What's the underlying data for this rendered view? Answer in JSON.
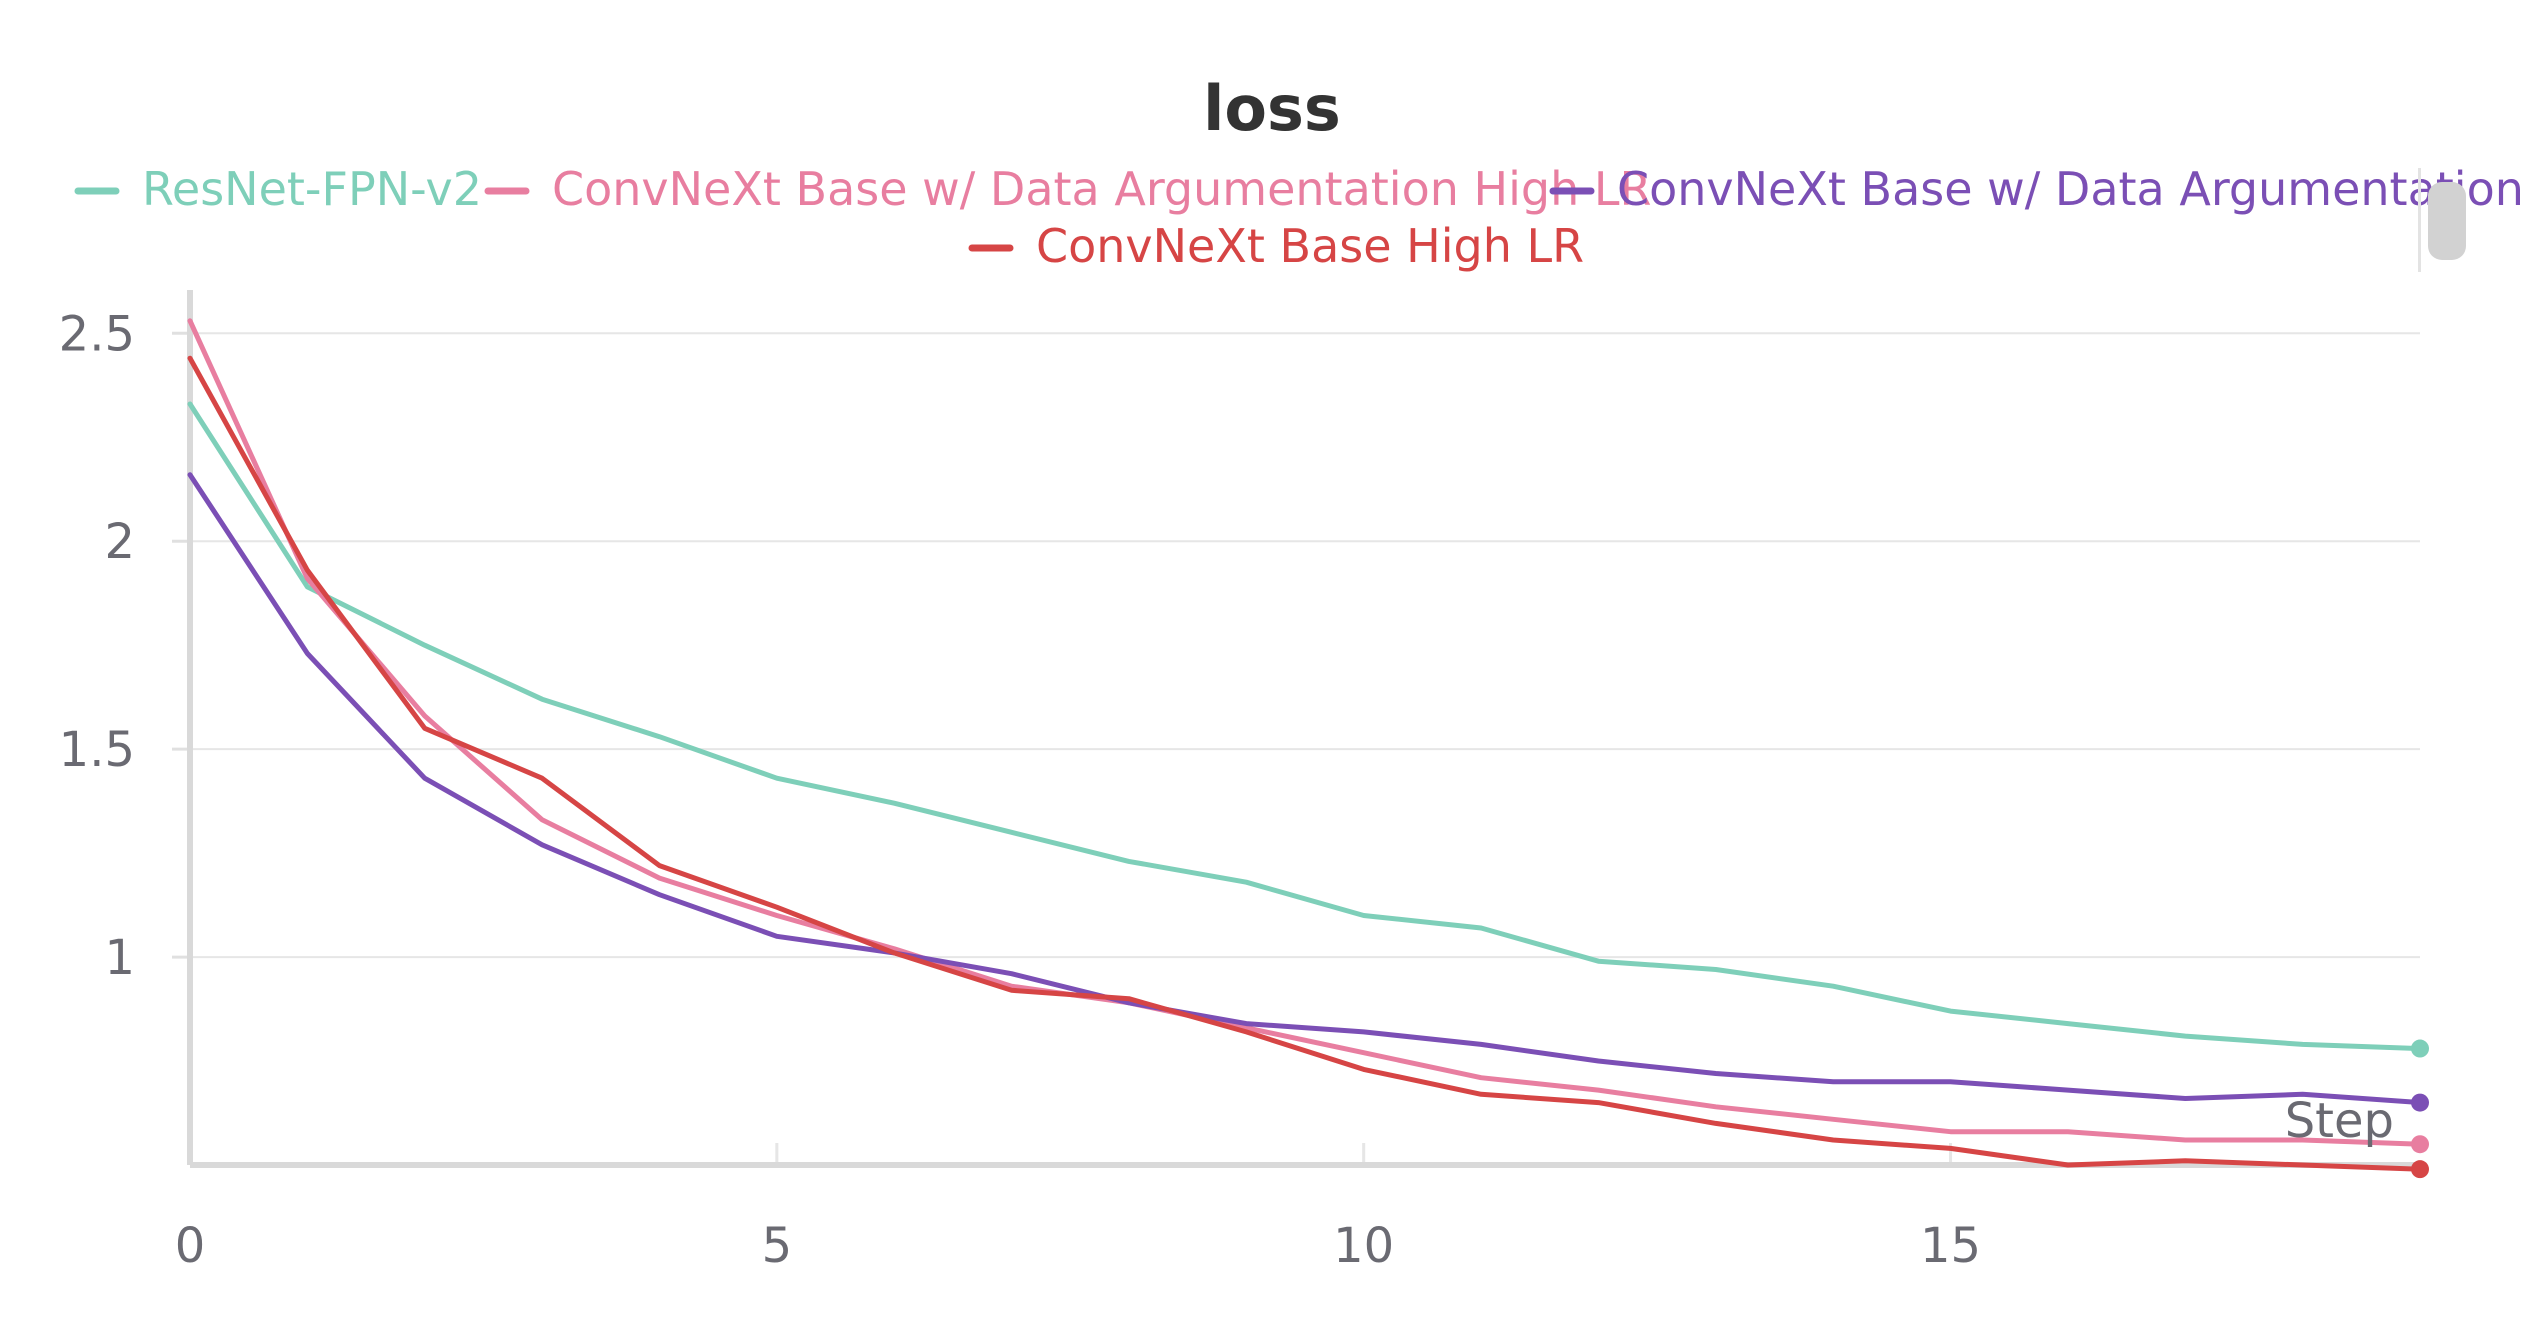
{
  "chart_data": {
    "type": "line",
    "title": "loss",
    "xlabel": "Step",
    "ylabel": "",
    "xlim": [
      0,
      19
    ],
    "ylim": [
      0.5,
      2.58
    ],
    "x_ticks": [
      0,
      5,
      10,
      15
    ],
    "y_ticks": [
      1,
      1.5,
      2,
      2.5
    ],
    "x_tick_labels": [
      "0",
      "5",
      "10",
      "15"
    ],
    "y_tick_labels": [
      "1",
      "1.5",
      "2",
      "2.5"
    ],
    "grid": true,
    "legend_position": "top",
    "series": [
      {
        "name": "ResNet-FPN-v2",
        "color": "#7ecfb9",
        "x": [
          0,
          1,
          2,
          3,
          4,
          5,
          6,
          7,
          8,
          9,
          10,
          11,
          12,
          13,
          14,
          15,
          16,
          17,
          18,
          19
        ],
        "values": [
          2.33,
          1.89,
          1.75,
          1.62,
          1.53,
          1.43,
          1.37,
          1.3,
          1.23,
          1.18,
          1.1,
          1.07,
          0.99,
          0.97,
          0.93,
          0.87,
          0.84,
          0.81,
          0.79,
          0.78
        ]
      },
      {
        "name": "ConvNeXt Base w/ Data Argumentation High LR",
        "color": "#e87ea0",
        "x": [
          0,
          1,
          2,
          3,
          4,
          5,
          6,
          7,
          8,
          9,
          10,
          11,
          12,
          13,
          14,
          15,
          16,
          17,
          18,
          19
        ],
        "values": [
          2.53,
          1.91,
          1.58,
          1.33,
          1.19,
          1.1,
          1.02,
          0.93,
          0.89,
          0.83,
          0.77,
          0.71,
          0.68,
          0.64,
          0.61,
          0.58,
          0.58,
          0.56,
          0.56,
          0.55
        ]
      },
      {
        "name": "ConvNeXt Base w/ Data Argumentation",
        "color": "#7b4fb5",
        "x": [
          0,
          1,
          2,
          3,
          4,
          5,
          6,
          7,
          8,
          9,
          10,
          11,
          12,
          13,
          14,
          15,
          16,
          17,
          18,
          19
        ],
        "values": [
          2.16,
          1.73,
          1.43,
          1.27,
          1.15,
          1.05,
          1.01,
          0.96,
          0.89,
          0.84,
          0.82,
          0.79,
          0.75,
          0.72,
          0.7,
          0.7,
          0.68,
          0.66,
          0.67,
          0.65
        ]
      },
      {
        "name": "ConvNeXt Base High LR",
        "color": "#d64545",
        "x": [
          0,
          1,
          2,
          3,
          4,
          5,
          6,
          7,
          8,
          9,
          10,
          11,
          12,
          13,
          14,
          15,
          16,
          17,
          18,
          19
        ],
        "values": [
          2.44,
          1.93,
          1.55,
          1.43,
          1.22,
          1.12,
          1.01,
          0.92,
          0.9,
          0.82,
          0.73,
          0.67,
          0.65,
          0.6,
          0.56,
          0.54,
          0.5,
          0.51,
          0.5,
          0.49
        ]
      }
    ]
  }
}
